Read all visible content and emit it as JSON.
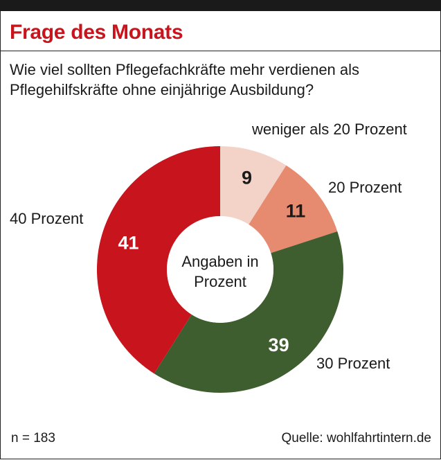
{
  "header": {
    "title": "Frage des Monats"
  },
  "question": {
    "line1": "Wie viel sollten Pflegefachkräfte mehr verdienen als",
    "line2": "Pflegehilfskräfte ohne einjährige Ausbildung?"
  },
  "chart_data": {
    "type": "pie",
    "title": "Wie viel sollten Pflegefachkräfte mehr verdienen als Pflegehilfskräfte ohne einjährige Ausbildung?",
    "center_label": [
      "Angaben in",
      "Prozent"
    ],
    "unit": "Prozent",
    "slices": [
      {
        "label": "weniger als 20 Prozent",
        "value": 9,
        "value_label": "9",
        "color": "#f3d3c7",
        "text_color": "#1a1a1a"
      },
      {
        "label": "20 Prozent",
        "value": 11,
        "value_label": "11",
        "color": "#e68b70",
        "text_color": "#1a1a1a"
      },
      {
        "label": "30 Prozent",
        "value": 39,
        "value_label": "39",
        "color": "#3f5e2f",
        "text_color": "#ffffff"
      },
      {
        "label": "40 Prozent",
        "value": 41,
        "value_label": "41",
        "color": "#c8141c",
        "text_color": "#ffffff"
      }
    ]
  },
  "footer": {
    "sample": "n = 183",
    "source": "Quelle: wohlfahrtintern.de"
  },
  "colors": {
    "title": "#c8141c",
    "topbar": "#1a1a1a",
    "text": "#1a1a1a"
  }
}
